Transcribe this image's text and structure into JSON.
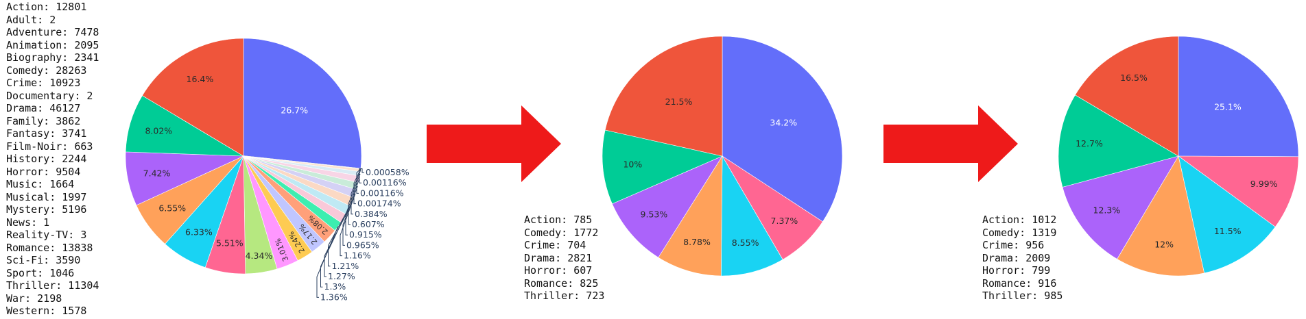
{
  "genre_counts_all": [
    "Action: 12801",
    "Adult: 2",
    "Adventure: 7478",
    "Animation: 2095",
    "Biography: 2341",
    "Comedy: 28263",
    "Crime: 10923",
    "Documentary: 2",
    "Drama: 46127",
    "Family: 3862",
    "Fantasy: 3741",
    "Film-Noir: 663",
    "History: 2244",
    "Horror: 9504",
    "Music: 1664",
    "Musical: 1997",
    "Mystery: 5196",
    "News: 1",
    "Reality-TV: 3",
    "Romance: 13838",
    "Sci-Fi: 3590",
    "Sport: 1046",
    "Thriller: 11304",
    "War: 2198",
    "Western: 1578"
  ],
  "genre_counts_middle": [
    "Action: 785",
    "Comedy: 1772",
    "Crime: 704",
    "Drama: 2821",
    "Horror: 607",
    "Romance: 825",
    "Thriller: 723"
  ],
  "genre_counts_right": [
    "Action: 1012",
    "Comedy: 1319",
    "Crime: 956",
    "Drama: 2009",
    "Horror: 799",
    "Romance: 916",
    "Thriller: 985"
  ],
  "arrow_color": "#ee1a1a",
  "chart_data": [
    {
      "type": "pie",
      "slices": [
        {
          "value": 26.7,
          "label": "26.7%",
          "color": "#636efa"
        },
        {
          "value": 0.00058,
          "label": "0.00058%",
          "color": "#1f3fd6"
        },
        {
          "value": 0.00116,
          "label": "0.00116%",
          "color": "#fff2dc"
        },
        {
          "value": 0.00116,
          "label": "0.00116%",
          "color": "#e6f2d6"
        },
        {
          "value": 0.00174,
          "label": "0.00174%",
          "color": "#f2f2f2"
        },
        {
          "value": 0.384,
          "label": "0.384%",
          "color": "#fbe3d0"
        },
        {
          "value": 0.607,
          "label": "0.607%",
          "color": "#d9ecf5"
        },
        {
          "value": 0.915,
          "label": "0.915%",
          "color": "#f8d5e6"
        },
        {
          "value": 0.965,
          "label": "0.965%",
          "color": "#c9ecd9"
        },
        {
          "value": 1.16,
          "label": "1.16%",
          "color": "#d4d1f5"
        },
        {
          "value": 1.21,
          "label": "1.21%",
          "color": "#fbd9c4"
        },
        {
          "value": 1.27,
          "label": "1.27%",
          "color": "#bfe9f4"
        },
        {
          "value": 1.3,
          "label": "1.3%",
          "color": "#f9c9d9"
        },
        {
          "value": 1.36,
          "label": "1.36%",
          "color": "#3deeb0"
        },
        {
          "value": 2.08,
          "label": "2.08%",
          "color": "#ffa07a"
        },
        {
          "value": 2.17,
          "label": "2.17%",
          "color": "#c0c6ff"
        },
        {
          "value": 2.24,
          "label": "2.24%",
          "color": "#fecb52"
        },
        {
          "value": 3.01,
          "label": "3.01%",
          "color": "#ff97ff"
        },
        {
          "value": 4.34,
          "label": "4.34%",
          "color": "#b6e880"
        },
        {
          "value": 5.51,
          "label": "5.51%",
          "color": "#ff6692"
        },
        {
          "value": 6.33,
          "label": "6.33%",
          "color": "#19d3f3"
        },
        {
          "value": 6.55,
          "label": "6.55%",
          "color": "#ffa15a"
        },
        {
          "value": 7.42,
          "label": "7.42%",
          "color": "#ab63fa"
        },
        {
          "value": 8.02,
          "label": "8.02%",
          "color": "#00cc96"
        },
        {
          "value": 16.4,
          "label": "16.4%",
          "color": "#ef553b"
        }
      ]
    },
    {
      "type": "pie",
      "slices": [
        {
          "value": 34.2,
          "label": "34.2%",
          "color": "#636efa"
        },
        {
          "value": 7.37,
          "label": "7.37%",
          "color": "#ff6692"
        },
        {
          "value": 8.55,
          "label": "8.55%",
          "color": "#19d3f3"
        },
        {
          "value": 8.78,
          "label": "8.78%",
          "color": "#ffa15a"
        },
        {
          "value": 9.53,
          "label": "9.53%",
          "color": "#ab63fa"
        },
        {
          "value": 10,
          "label": "10%",
          "color": "#00cc96"
        },
        {
          "value": 21.5,
          "label": "21.5%",
          "color": "#ef553b"
        }
      ]
    },
    {
      "type": "pie",
      "slices": [
        {
          "value": 25.1,
          "label": "25.1%",
          "color": "#636efa"
        },
        {
          "value": 9.99,
          "label": "9.99%",
          "color": "#ff6692"
        },
        {
          "value": 11.5,
          "label": "11.5%",
          "color": "#19d3f3"
        },
        {
          "value": 12,
          "label": "12%",
          "color": "#ffa15a"
        },
        {
          "value": 12.3,
          "label": "12.3%",
          "color": "#ab63fa"
        },
        {
          "value": 12.7,
          "label": "12.7%",
          "color": "#00cc96"
        },
        {
          "value": 16.5,
          "label": "16.5%",
          "color": "#ef553b"
        }
      ]
    }
  ]
}
